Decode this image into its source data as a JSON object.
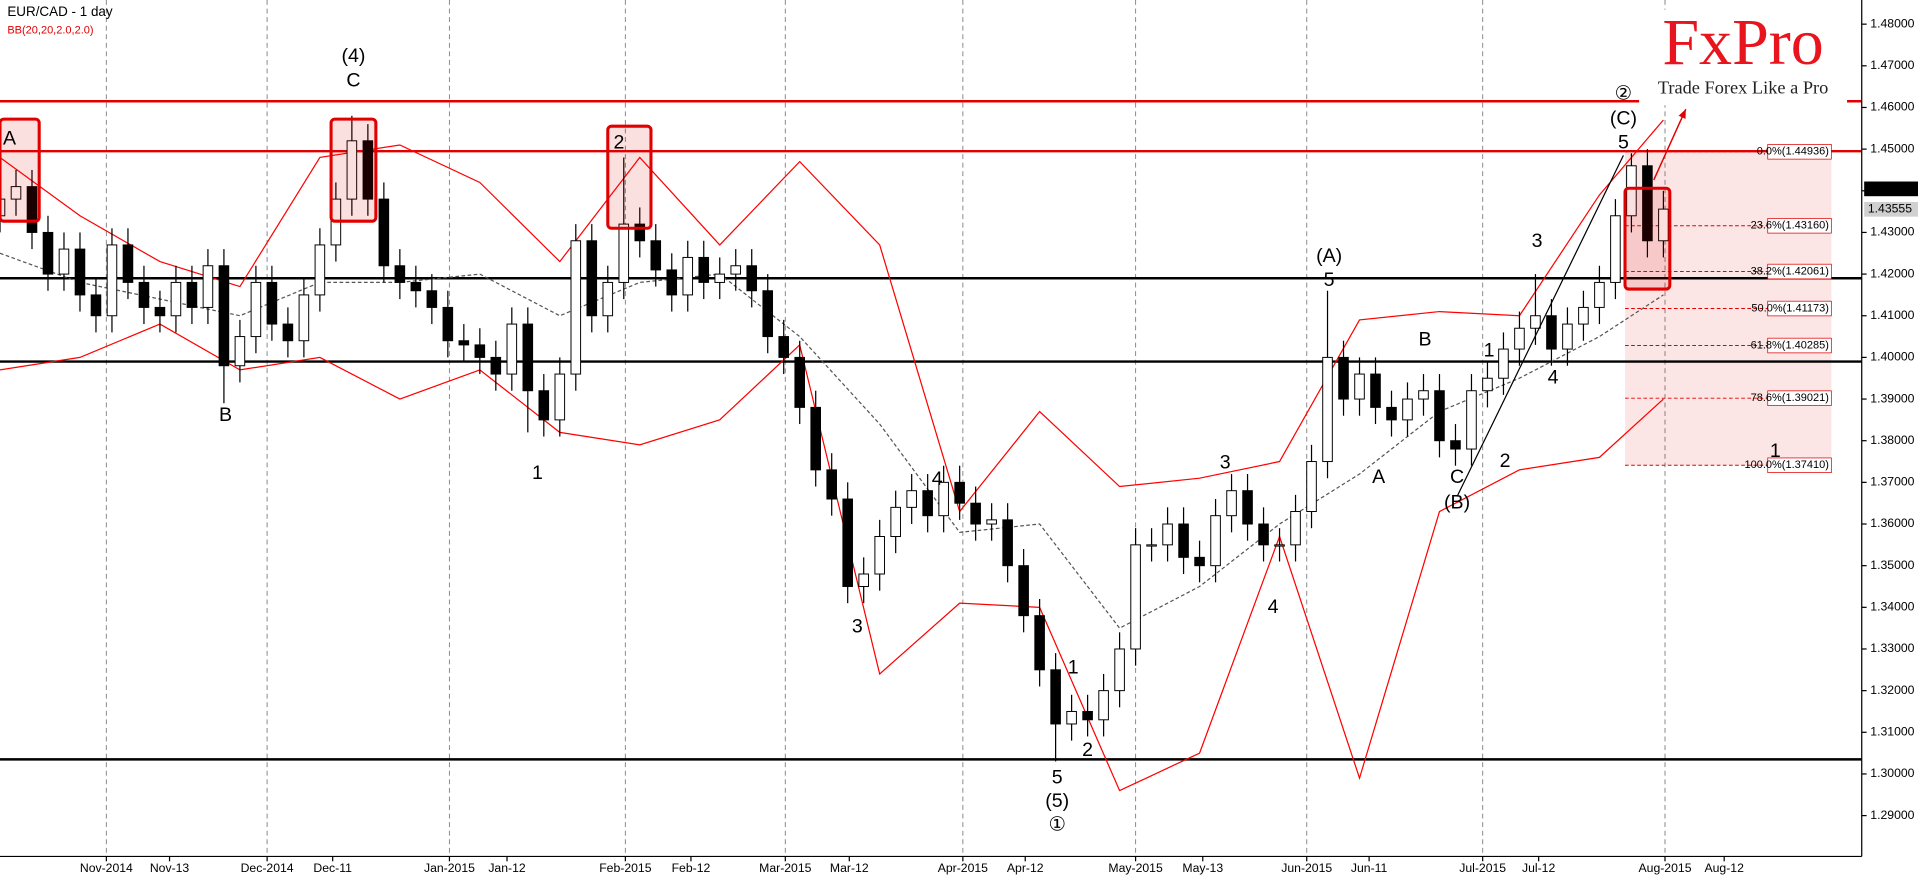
{
  "chart_data": {
    "type": "candlestick",
    "title": "EUR/CAD - 1 day",
    "subtitle": "BB(20,20,2.0,2.0)",
    "logo": "FxPro",
    "slogan": "Trade Forex Like a Pro",
    "xlim": [
      0,
      116.4
    ],
    "ylim": [
      1.2802,
      1.4858
    ],
    "xticks": [
      {
        "value": 6.65,
        "label": "Nov-2014"
      },
      {
        "value": 10.6,
        "label": "Nov-13"
      },
      {
        "value": 16.7,
        "label": "Dec-2014"
      },
      {
        "value": 20.8,
        "label": "Dec-11"
      },
      {
        "value": 28.1,
        "label": "Jan-2015"
      },
      {
        "value": 31.7,
        "label": "Jan-12"
      },
      {
        "value": 39.1,
        "label": "Feb-2015"
      },
      {
        "value": 43.2,
        "label": "Feb-12"
      },
      {
        "value": 49.1,
        "label": "Mar-2015"
      },
      {
        "value": 53.1,
        "label": "Mar-12"
      },
      {
        "value": 60.2,
        "label": "Apr-2015"
      },
      {
        "value": 64.1,
        "label": "Apr-12"
      },
      {
        "value": 71,
        "label": "May-2015"
      },
      {
        "value": 75.2,
        "label": "May-13"
      },
      {
        "value": 81.7,
        "label": "Jun-2015"
      },
      {
        "value": 85.6,
        "label": "Jun-11"
      },
      {
        "value": 92.7,
        "label": "Jul-2015"
      },
      {
        "value": 96.2,
        "label": "Jul-12"
      },
      {
        "value": 104.1,
        "label": "Aug-2015"
      },
      {
        "value": 107.8,
        "label": "Aug-12"
      }
    ],
    "yticks": [
      {
        "value": 1.29,
        "label": "1.29000"
      },
      {
        "value": 1.3,
        "label": "1.30000"
      },
      {
        "value": 1.31,
        "label": "1.31000"
      },
      {
        "value": 1.32,
        "label": "1.32000"
      },
      {
        "value": 1.33,
        "label": "1.33000"
      },
      {
        "value": 1.34,
        "label": "1.34000"
      },
      {
        "value": 1.35,
        "label": "1.35000"
      },
      {
        "value": 1.36,
        "label": "1.36000"
      },
      {
        "value": 1.37,
        "label": "1.37000"
      },
      {
        "value": 1.38,
        "label": "1.38000"
      },
      {
        "value": 1.39,
        "label": "1.39000"
      },
      {
        "value": 1.4,
        "label": "1.40000"
      },
      {
        "value": 1.41,
        "label": "1.41000"
      },
      {
        "value": 1.42,
        "label": "1.42000"
      },
      {
        "value": 1.43,
        "label": "1.43000"
      },
      {
        "value": 1.44,
        "label": "1.44000"
      },
      {
        "value": 1.45,
        "label": "1.45000"
      },
      {
        "value": 1.46,
        "label": "1.46000"
      },
      {
        "value": 1.47,
        "label": "1.47000"
      },
      {
        "value": 1.48,
        "label": "1.48000"
      }
    ],
    "up_color": "#ffffff",
    "down_color": "#000000",
    "open": [
      1.434,
      1.438,
      1.441,
      1.43,
      1.42,
      1.426,
      1.415,
      1.41,
      1.427,
      1.418,
      1.412,
      1.41,
      1.418,
      1.412,
      1.422,
      1.398,
      1.405,
      1.418,
      1.408,
      1.404,
      1.415,
      1.427,
      1.438,
      1.452,
      1.438,
      1.422,
      1.418,
      1.416,
      1.412,
      1.404,
      1.403,
      1.4,
      1.396,
      1.408,
      1.392,
      1.385,
      1.396,
      1.428,
      1.41,
      1.418,
      1.432,
      1.428,
      1.421,
      1.415,
      1.424,
      1.418,
      1.42,
      1.422,
      1.416,
      1.405,
      1.4,
      1.388,
      1.373,
      1.366,
      1.345,
      1.348,
      1.357,
      1.364,
      1.368,
      1.362,
      1.37,
      1.365,
      1.36,
      1.361,
      1.35,
      1.338,
      1.325,
      1.312,
      1.315,
      1.313,
      1.32,
      1.33,
      1.355,
      1.355,
      1.36,
      1.352,
      1.35,
      1.362,
      1.368,
      1.36,
      1.355,
      1.355,
      1.363,
      1.375,
      1.4,
      1.39,
      1.396,
      1.388,
      1.385,
      1.39,
      1.392,
      1.38,
      1.378,
      1.392,
      1.395,
      1.402,
      1.407,
      1.41,
      1.402,
      1.408,
      1.412,
      1.418,
      1.434,
      1.446,
      1.428
    ],
    "high": [
      1.442,
      1.445,
      1.445,
      1.434,
      1.43,
      1.43,
      1.419,
      1.431,
      1.431,
      1.422,
      1.416,
      1.422,
      1.422,
      1.426,
      1.426,
      1.409,
      1.422,
      1.422,
      1.412,
      1.419,
      1.431,
      1.442,
      1.458,
      1.456,
      1.442,
      1.426,
      1.422,
      1.42,
      1.416,
      1.408,
      1.407,
      1.404,
      1.412,
      1.412,
      1.396,
      1.4,
      1.432,
      1.432,
      1.422,
      1.448,
      1.436,
      1.432,
      1.425,
      1.428,
      1.428,
      1.424,
      1.426,
      1.426,
      1.42,
      1.409,
      1.404,
      1.392,
      1.377,
      1.37,
      1.352,
      1.361,
      1.368,
      1.372,
      1.372,
      1.374,
      1.374,
      1.369,
      1.365,
      1.365,
      1.354,
      1.342,
      1.329,
      1.319,
      1.319,
      1.324,
      1.334,
      1.359,
      1.359,
      1.364,
      1.364,
      1.356,
      1.366,
      1.372,
      1.372,
      1.364,
      1.359,
      1.367,
      1.379,
      1.416,
      1.404,
      1.4,
      1.4,
      1.392,
      1.394,
      1.396,
      1.396,
      1.384,
      1.396,
      1.399,
      1.406,
      1.411,
      1.42,
      1.414,
      1.412,
      1.416,
      1.422,
      1.438,
      1.449,
      1.45,
      1.44
    ],
    "low": [
      1.43,
      1.434,
      1.426,
      1.416,
      1.416,
      1.411,
      1.406,
      1.406,
      1.414,
      1.408,
      1.406,
      1.406,
      1.408,
      1.408,
      1.389,
      1.394,
      1.401,
      1.404,
      1.4,
      1.4,
      1.411,
      1.423,
      1.434,
      1.434,
      1.418,
      1.414,
      1.412,
      1.408,
      1.4,
      1.399,
      1.396,
      1.392,
      1.392,
      1.382,
      1.381,
      1.381,
      1.392,
      1.406,
      1.406,
      1.414,
      1.424,
      1.417,
      1.411,
      1.411,
      1.414,
      1.414,
      1.416,
      1.412,
      1.401,
      1.396,
      1.384,
      1.369,
      1.362,
      1.341,
      1.341,
      1.344,
      1.353,
      1.36,
      1.358,
      1.358,
      1.361,
      1.356,
      1.356,
      1.346,
      1.334,
      1.321,
      1.303,
      1.308,
      1.309,
      1.309,
      1.316,
      1.326,
      1.351,
      1.351,
      1.348,
      1.346,
      1.346,
      1.358,
      1.356,
      1.351,
      1.351,
      1.351,
      1.359,
      1.371,
      1.386,
      1.386,
      1.384,
      1.381,
      1.381,
      1.386,
      1.376,
      1.374,
      1.374,
      1.388,
      1.391,
      1.398,
      1.403,
      1.398,
      1.398,
      1.404,
      1.408,
      1.414,
      1.43,
      1.424,
      1.424
    ],
    "close": [
      1.438,
      1.441,
      1.43,
      1.42,
      1.426,
      1.415,
      1.41,
      1.427,
      1.418,
      1.412,
      1.41,
      1.418,
      1.412,
      1.422,
      1.398,
      1.405,
      1.418,
      1.408,
      1.404,
      1.415,
      1.427,
      1.438,
      1.452,
      1.438,
      1.422,
      1.418,
      1.416,
      1.412,
      1.404,
      1.403,
      1.4,
      1.396,
      1.408,
      1.392,
      1.385,
      1.396,
      1.428,
      1.41,
      1.418,
      1.432,
      1.428,
      1.421,
      1.415,
      1.424,
      1.418,
      1.42,
      1.422,
      1.416,
      1.405,
      1.4,
      1.388,
      1.373,
      1.366,
      1.345,
      1.348,
      1.357,
      1.364,
      1.368,
      1.362,
      1.37,
      1.365,
      1.36,
      1.361,
      1.35,
      1.338,
      1.325,
      1.312,
      1.315,
      1.313,
      1.32,
      1.33,
      1.355,
      1.355,
      1.36,
      1.352,
      1.35,
      1.362,
      1.368,
      1.36,
      1.355,
      1.355,
      1.363,
      1.375,
      1.4,
      1.39,
      1.396,
      1.388,
      1.385,
      1.39,
      1.392,
      1.38,
      1.378,
      1.392,
      1.395,
      1.402,
      1.407,
      1.41,
      1.402,
      1.408,
      1.412,
      1.418,
      1.434,
      1.446,
      1.428,
      1.4356
    ],
    "bollinger": {
      "x": [
        0,
        5,
        10,
        15,
        20,
        25,
        30,
        35,
        40,
        45,
        50,
        55,
        60,
        65,
        70,
        75,
        80,
        85,
        90,
        95,
        100,
        104
      ],
      "upper": [
        1.448,
        1.434,
        1.423,
        1.417,
        1.448,
        1.451,
        1.442,
        1.423,
        1.448,
        1.427,
        1.447,
        1.427,
        1.363,
        1.387,
        1.369,
        1.371,
        1.375,
        1.409,
        1.411,
        1.41,
        1.439,
        1.457
      ],
      "middle": [
        1.425,
        1.418,
        1.414,
        1.41,
        1.418,
        1.418,
        1.42,
        1.41,
        1.418,
        1.42,
        1.405,
        1.384,
        1.358,
        1.36,
        1.335,
        1.345,
        1.36,
        1.372,
        1.387,
        1.395,
        1.405,
        1.415
      ],
      "lower": [
        1.397,
        1.4,
        1.408,
        1.397,
        1.4,
        1.39,
        1.397,
        1.382,
        1.379,
        1.385,
        1.403,
        1.324,
        1.341,
        1.34,
        1.296,
        1.305,
        1.357,
        1.299,
        1.363,
        1.373,
        1.376,
        1.39
      ],
      "band_color": "#ff0000",
      "middle_color": "#555555"
    },
    "hlines": [
      {
        "value": 1.4615,
        "color": "#e00000"
      },
      {
        "value": 1.4495,
        "color": "#e00000"
      },
      {
        "value": 1.419,
        "color": "#000000"
      },
      {
        "value": 1.399,
        "color": "#000000"
      },
      {
        "value": 1.3035,
        "color": "#000000"
      }
    ],
    "fibonacci": {
      "x": [
        101.6,
        114.5
      ],
      "color": "#e00000",
      "levels": [
        {
          "value": 1.44936,
          "label": "0.0%(1.44936)"
        },
        {
          "value": 1.4316,
          "label": "23.6%(1.43160)"
        },
        {
          "value": 1.42061,
          "label": "38.2%(1.42061)"
        },
        {
          "value": 1.41173,
          "label": "50.0%(1.41173)"
        },
        {
          "value": 1.40285,
          "label": "61.8%(1.40285)"
        },
        {
          "value": 1.39021,
          "label": "78.6%(1.39021)"
        },
        {
          "value": 1.3741,
          "label": "100.0%(1.37410)"
        }
      ]
    },
    "price_tags": [
      {
        "value": 1.44046,
        "color": "#000000"
      },
      {
        "value": 1.43555,
        "color": "#d0d0d0"
      }
    ],
    "highlights": [
      {
        "x": [
          0,
          2.45
        ],
        "y": [
          1.4327,
          1.4572
        ]
      },
      {
        "x": [
          20.7,
          23.5
        ],
        "y": [
          1.4327,
          1.4572
        ]
      },
      {
        "x": [
          38.0,
          40.7
        ],
        "y": [
          1.431,
          1.4555
        ]
      },
      {
        "x": [
          101.6,
          104.4
        ],
        "y": [
          1.4164,
          1.4406
        ]
      }
    ],
    "trend_lines": [
      {
        "x": [
          91.1,
          101.5
        ],
        "y": [
          1.3666,
          1.4485
        ],
        "color": "#000000"
      }
    ],
    "arrows": [
      {
        "x": [
          103.4,
          105.4
        ],
        "y": [
          1.4426,
          1.4596
        ],
        "color": "#e00000"
      }
    ],
    "annotations": [
      {
        "text": "A",
        "x": 0.6,
        "y": 1.4523
      },
      {
        "text": "(4)",
        "x": 22.1,
        "y": 1.4721
      },
      {
        "text": "C",
        "x": 22.1,
        "y": 1.4663
      },
      {
        "text": "2",
        "x": 38.7,
        "y": 1.4514
      },
      {
        "text": "B",
        "x": 14.1,
        "y": 1.386
      },
      {
        "text": "1",
        "x": 33.6,
        "y": 1.372
      },
      {
        "text": "3",
        "x": 53.6,
        "y": 1.3352
      },
      {
        "text": "4",
        "x": 58.6,
        "y": 1.3706
      },
      {
        "text": "5",
        "x": 66.1,
        "y": 1.299
      },
      {
        "text": "(5)",
        "x": 66.1,
        "y": 1.2933
      },
      {
        "text": "①",
        "x": 66.1,
        "y": 1.2877
      },
      {
        "text": "1",
        "x": 67.1,
        "y": 1.3253
      },
      {
        "text": "2",
        "x": 68.0,
        "y": 1.3055
      },
      {
        "text": "3",
        "x": 76.6,
        "y": 1.3746
      },
      {
        "text": "4",
        "x": 79.6,
        "y": 1.3399
      },
      {
        "text": "(A)",
        "x": 83.1,
        "y": 1.4242
      },
      {
        "text": "5",
        "x": 83.1,
        "y": 1.4184
      },
      {
        "text": "A",
        "x": 86.2,
        "y": 1.3711
      },
      {
        "text": "B",
        "x": 89.1,
        "y": 1.4041
      },
      {
        "text": "C",
        "x": 91.1,
        "y": 1.3711
      },
      {
        "text": "(B)",
        "x": 91.1,
        "y": 1.365
      },
      {
        "text": "1",
        "x": 93.1,
        "y": 1.4015
      },
      {
        "text": "2",
        "x": 94.1,
        "y": 1.3749
      },
      {
        "text": "3",
        "x": 96.1,
        "y": 1.4278
      },
      {
        "text": "4",
        "x": 97.1,
        "y": 1.395
      },
      {
        "text": "②",
        "x": 101.5,
        "y": 1.4631
      },
      {
        "text": "(C)",
        "x": 101.5,
        "y": 1.4572
      },
      {
        "text": "5",
        "x": 101.5,
        "y": 1.4514
      },
      {
        "text": "1",
        "x": 111.0,
        "y": 1.3773
      }
    ]
  }
}
